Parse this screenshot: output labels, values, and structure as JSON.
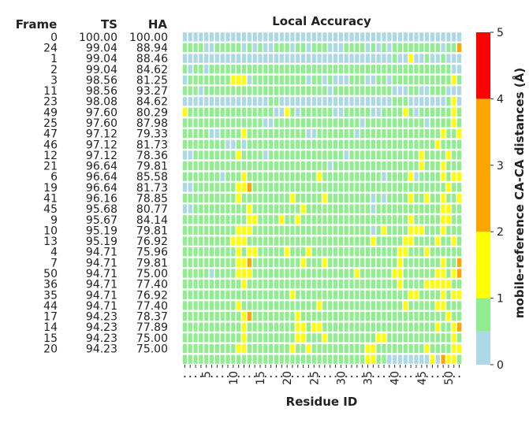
{
  "chart_data": {
    "type": "heatmap",
    "title": "Local Accuracy",
    "xlabel": "Residue ID",
    "colorbar_label": "mobile-reference CA-CA distances (Å)",
    "table_headers": [
      "Frame",
      "TS",
      "HA"
    ],
    "rows": [
      {
        "frame": "0",
        "ts": "100.00",
        "ha": "100.00"
      },
      {
        "frame": "24",
        "ts": "99.04",
        "ha": "88.94"
      },
      {
        "frame": "1",
        "ts": "99.04",
        "ha": "88.46"
      },
      {
        "frame": "2",
        "ts": "99.04",
        "ha": "84.62"
      },
      {
        "frame": "3",
        "ts": "98.56",
        "ha": "81.25"
      },
      {
        "frame": "11",
        "ts": "98.56",
        "ha": "93.27"
      },
      {
        "frame": "23",
        "ts": "98.08",
        "ha": "84.62"
      },
      {
        "frame": "49",
        "ts": "97.60",
        "ha": "80.29"
      },
      {
        "frame": "25",
        "ts": "97.60",
        "ha": "87.98"
      },
      {
        "frame": "47",
        "ts": "97.12",
        "ha": "79.33"
      },
      {
        "frame": "46",
        "ts": "97.12",
        "ha": "81.73"
      },
      {
        "frame": "12",
        "ts": "97.12",
        "ha": "78.36"
      },
      {
        "frame": "21",
        "ts": "96.64",
        "ha": "79.81"
      },
      {
        "frame": "6",
        "ts": "96.64",
        "ha": "85.58"
      },
      {
        "frame": "19",
        "ts": "96.64",
        "ha": "81.73"
      },
      {
        "frame": "41",
        "ts": "96.16",
        "ha": "78.85"
      },
      {
        "frame": "45",
        "ts": "95.68",
        "ha": "80.77"
      },
      {
        "frame": "9",
        "ts": "95.67",
        "ha": "84.14"
      },
      {
        "frame": "10",
        "ts": "95.19",
        "ha": "79.81"
      },
      {
        "frame": "13",
        "ts": "95.19",
        "ha": "76.92"
      },
      {
        "frame": "4",
        "ts": "94.71",
        "ha": "75.96"
      },
      {
        "frame": "7",
        "ts": "94.71",
        "ha": "79.81"
      },
      {
        "frame": "50",
        "ts": "94.71",
        "ha": "75.00"
      },
      {
        "frame": "36",
        "ts": "94.71",
        "ha": "77.40"
      },
      {
        "frame": "35",
        "ts": "94.71",
        "ha": "76.92"
      },
      {
        "frame": "44",
        "ts": "94.71",
        "ha": "77.40"
      },
      {
        "frame": "17",
        "ts": "94.23",
        "ha": "78.37"
      },
      {
        "frame": "14",
        "ts": "94.23",
        "ha": "77.89"
      },
      {
        "frame": "15",
        "ts": "94.23",
        "ha": "75.00"
      },
      {
        "frame": "20",
        "ts": "94.23",
        "ha": "75.00"
      }
    ],
    "n_residues": 52,
    "x_tick_labels": [
      "5",
      "10",
      "15",
      "20",
      "25",
      "30",
      "35",
      "40",
      "45",
      "50"
    ],
    "x_tick_values": [
      5,
      10,
      15,
      20,
      25,
      30,
      35,
      40,
      45,
      50
    ],
    "colorbar": {
      "ticks": [
        "0",
        "1",
        "2",
        "3",
        "4",
        "5"
      ],
      "bins": [
        {
          "from": 0,
          "to": 0.5,
          "color": "#add8e6"
        },
        {
          "from": 0.5,
          "to": 1,
          "color": "#90ee90"
        },
        {
          "from": 1,
          "to": 2,
          "color": "#ffff00"
        },
        {
          "from": 2,
          "to": 4,
          "color": "#ffa500"
        },
        {
          "from": 4,
          "to": 5,
          "color": "#ff0000"
        }
      ]
    },
    "cell_codes_note": "0=blue(<0.5),1=green(0.5-1),2=yellow(1-2),3=orange(2-4),4=red(>4)",
    "matrix": [
      "0000000000000000000000000000000000000000000000000000",
      "1111001111101010011101101110001111010101111111110113",
      "0000000000000000000000000000000000000001002001001000",
      "1011011111111111111111111111111111111111111111111100",
      "0111111112220111111111101101000111001101111111111121",
      "1110111111111111111111111110111111111110001100111000",
      "0000000000000000110000000000000000000001110000000120",
      "2111111111111111100210111111001111100111121011111121",
      "1111111111111110011111111111111110111111111110111121",
      "1111100111121111111111100111111101111111111111112112",
      "1111111100101111111111111111111111111111111111121111",
      "0011111111211110111111111111110111111111111121111211",
      "1111111111111111111111111110111111111111111121112111",
      "1111111011121111111111111211111111111011112011112122",
      "0011111111223111111111111111111111111111111111111211",
      "1111111111211111111121111121111111101011112112112112",
      "0011111111112111111111211111111111101111111111112211",
      "1111111111112211112112111111111111111111112111112211",
      "1111111111222111111111111111111111101211112221112111",
      "1111111112221111111111111111111111121111122111121121",
      "1111111111212211111211121111111111111111221112111111",
      "1111111111223111111111211121111111111111211111112113",
      "1111101111222111111111111111111121111112211111122123",
      "1111111111121111111111111111111111111111211112222211",
      "1111111111111111111121111111111111111111112211112122",
      "1111111111211111111111111211111111111111121111122111",
      "1111111111123111111112111111111111111111111111111211",
      "1111111111121111111112212211111111111111111111121123",
      "1111111111121111111112211121111111112211111111111121",
      "1111111111221111111121121111111111221111111112111122",
      "1111111111111111111111111111111111221100000000203221"
    ]
  }
}
